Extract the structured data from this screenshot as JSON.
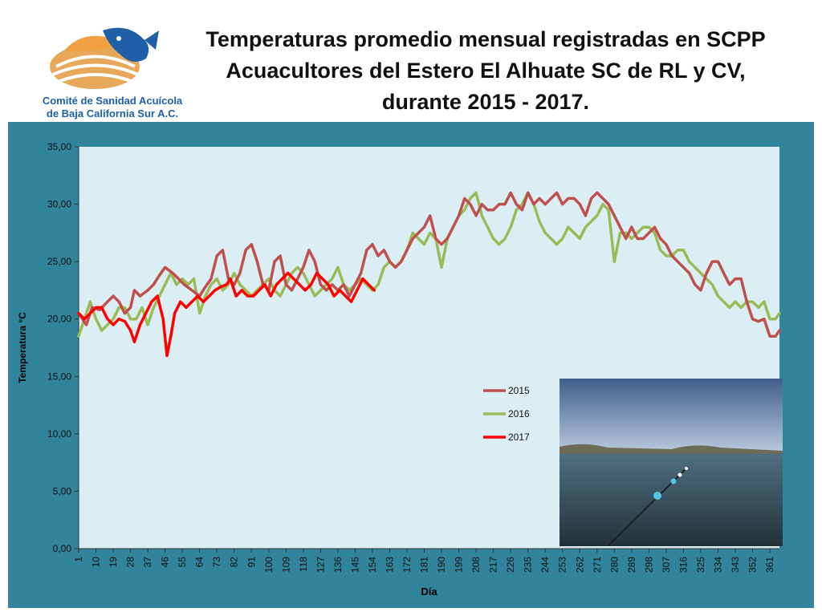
{
  "header": {
    "title_lines": [
      "Temperaturas promedio mensual registradas en SCPP",
      "Acuacultores del Estero El Alhuate SC de RL y CV,",
      "durante 2015 - 2017."
    ],
    "logo_text_lines": [
      "Comité de Sanidad Acuícola",
      "de Baja California Sur A.C."
    ]
  },
  "colors": {
    "frame": "#31849b",
    "plot_bg": "#dbeef3",
    "series_2015": "#c0504d",
    "series_2016": "#9bbb59",
    "series_2017": "#ff0000"
  },
  "chart_data": {
    "type": "line",
    "xlabel": "Día",
    "ylabel": "Temperatura °C",
    "ylim": [
      0,
      35
    ],
    "yticks": [
      "0,00",
      "5,00",
      "10,00",
      "15,00",
      "20,00",
      "25,00",
      "30,00",
      "35,00"
    ],
    "xticks": [
      1,
      10,
      19,
      28,
      37,
      46,
      55,
      64,
      73,
      82,
      91,
      100,
      109,
      118,
      127,
      136,
      145,
      154,
      163,
      172,
      181,
      190,
      199,
      208,
      217,
      226,
      235,
      244,
      253,
      262,
      271,
      280,
      289,
      298,
      307,
      316,
      325,
      334,
      343,
      352,
      361
    ],
    "xlim": [
      1,
      366
    ],
    "legend_position": "lower-middle",
    "grid": false,
    "series": [
      {
        "name": "2015",
        "points": [
          [
            1,
            20.5
          ],
          [
            5,
            19.5
          ],
          [
            8,
            21
          ],
          [
            12,
            20.8
          ],
          [
            16,
            21.5
          ],
          [
            19,
            22
          ],
          [
            22,
            21.5
          ],
          [
            25,
            20.5
          ],
          [
            28,
            21
          ],
          [
            30,
            22.5
          ],
          [
            33,
            22
          ],
          [
            37,
            22.5
          ],
          [
            40,
            23
          ],
          [
            43,
            23.8
          ],
          [
            46,
            24.5
          ],
          [
            50,
            24
          ],
          [
            53,
            23.5
          ],
          [
            56,
            23
          ],
          [
            60,
            22.5
          ],
          [
            64,
            22
          ],
          [
            67,
            22.8
          ],
          [
            70,
            23.5
          ],
          [
            73,
            25.5
          ],
          [
            76,
            26
          ],
          [
            79,
            23.5
          ],
          [
            82,
            23
          ],
          [
            85,
            24
          ],
          [
            88,
            26
          ],
          [
            91,
            26.5
          ],
          [
            94,
            25
          ],
          [
            97,
            23
          ],
          [
            100,
            22.5
          ],
          [
            103,
            25
          ],
          [
            106,
            25.5
          ],
          [
            109,
            23
          ],
          [
            112,
            22.5
          ],
          [
            115,
            23.5
          ],
          [
            118,
            24.5
          ],
          [
            121,
            26
          ],
          [
            124,
            25
          ],
          [
            127,
            23
          ],
          [
            130,
            22.5
          ],
          [
            133,
            23
          ],
          [
            136,
            22.5
          ],
          [
            139,
            23
          ],
          [
            142,
            22
          ],
          [
            145,
            23
          ],
          [
            148,
            24
          ],
          [
            151,
            26
          ],
          [
            154,
            26.5
          ],
          [
            157,
            25.5
          ],
          [
            160,
            26
          ],
          [
            163,
            25
          ],
          [
            166,
            24.5
          ],
          [
            169,
            25
          ],
          [
            172,
            26
          ],
          [
            175,
            27
          ],
          [
            178,
            27.5
          ],
          [
            181,
            28
          ],
          [
            184,
            29
          ],
          [
            187,
            27
          ],
          [
            190,
            26.5
          ],
          [
            193,
            27
          ],
          [
            196,
            28
          ],
          [
            199,
            29
          ],
          [
            202,
            30.5
          ],
          [
            205,
            30
          ],
          [
            208,
            29
          ],
          [
            211,
            30
          ],
          [
            214,
            29.5
          ],
          [
            217,
            29.5
          ],
          [
            220,
            30
          ],
          [
            223,
            30
          ],
          [
            226,
            31
          ],
          [
            229,
            30
          ],
          [
            232,
            29.5
          ],
          [
            235,
            31
          ],
          [
            238,
            30
          ],
          [
            241,
            30.5
          ],
          [
            244,
            30
          ],
          [
            247,
            30.5
          ],
          [
            250,
            31
          ],
          [
            253,
            30
          ],
          [
            256,
            30.5
          ],
          [
            259,
            30.5
          ],
          [
            262,
            30
          ],
          [
            265,
            29
          ],
          [
            268,
            30.5
          ],
          [
            271,
            31
          ],
          [
            274,
            30.5
          ],
          [
            277,
            30
          ],
          [
            280,
            29
          ],
          [
            283,
            28
          ],
          [
            286,
            27
          ],
          [
            289,
            28
          ],
          [
            292,
            27
          ],
          [
            295,
            27
          ],
          [
            298,
            27.5
          ],
          [
            301,
            28
          ],
          [
            304,
            27
          ],
          [
            307,
            26.5
          ],
          [
            310,
            25.5
          ],
          [
            313,
            25
          ],
          [
            316,
            24.5
          ],
          [
            319,
            24
          ],
          [
            322,
            23
          ],
          [
            325,
            22.5
          ],
          [
            328,
            24
          ],
          [
            331,
            25
          ],
          [
            334,
            25
          ],
          [
            337,
            24
          ],
          [
            340,
            23
          ],
          [
            343,
            23.5
          ],
          [
            346,
            23.5
          ],
          [
            349,
            21.5
          ],
          [
            352,
            20
          ],
          [
            355,
            19.8
          ],
          [
            358,
            20
          ],
          [
            361,
            18.5
          ],
          [
            364,
            18.5
          ],
          [
            366,
            19
          ]
        ]
      },
      {
        "name": "2016",
        "points": [
          [
            1,
            18.5
          ],
          [
            4,
            20
          ],
          [
            7,
            21.5
          ],
          [
            10,
            20
          ],
          [
            13,
            19
          ],
          [
            16,
            19.5
          ],
          [
            19,
            20
          ],
          [
            22,
            21
          ],
          [
            25,
            21
          ],
          [
            28,
            20
          ],
          [
            31,
            20
          ],
          [
            34,
            21
          ],
          [
            37,
            19.5
          ],
          [
            40,
            21
          ],
          [
            43,
            22
          ],
          [
            46,
            23
          ],
          [
            49,
            24
          ],
          [
            52,
            23
          ],
          [
            55,
            23.5
          ],
          [
            58,
            23
          ],
          [
            61,
            23.5
          ],
          [
            64,
            20.5
          ],
          [
            67,
            22
          ],
          [
            70,
            23
          ],
          [
            73,
            23.5
          ],
          [
            76,
            22.5
          ],
          [
            79,
            23
          ],
          [
            82,
            24
          ],
          [
            85,
            23
          ],
          [
            88,
            22.5
          ],
          [
            91,
            22
          ],
          [
            94,
            22.5
          ],
          [
            97,
            23
          ],
          [
            100,
            23.5
          ],
          [
            103,
            22.5
          ],
          [
            106,
            22
          ],
          [
            109,
            23
          ],
          [
            112,
            24
          ],
          [
            115,
            24.5
          ],
          [
            118,
            24
          ],
          [
            121,
            23
          ],
          [
            124,
            22
          ],
          [
            127,
            22.5
          ],
          [
            130,
            23
          ],
          [
            133,
            23.5
          ],
          [
            136,
            24.5
          ],
          [
            139,
            23
          ],
          [
            142,
            22.5
          ],
          [
            145,
            23
          ],
          [
            148,
            23.5
          ],
          [
            151,
            23
          ],
          [
            154,
            22.5
          ],
          [
            157,
            23
          ],
          [
            160,
            24.5
          ],
          [
            163,
            25
          ],
          [
            166,
            24.5
          ],
          [
            169,
            25
          ],
          [
            172,
            26
          ],
          [
            175,
            27.5
          ],
          [
            178,
            27
          ],
          [
            181,
            26.5
          ],
          [
            184,
            27.5
          ],
          [
            187,
            27
          ],
          [
            190,
            24.5
          ],
          [
            193,
            27
          ],
          [
            196,
            28
          ],
          [
            199,
            29
          ],
          [
            202,
            29.5
          ],
          [
            205,
            30.5
          ],
          [
            208,
            31
          ],
          [
            211,
            29
          ],
          [
            214,
            28
          ],
          [
            217,
            27
          ],
          [
            220,
            26.5
          ],
          [
            223,
            27
          ],
          [
            226,
            28
          ],
          [
            229,
            29.5
          ],
          [
            232,
            30
          ],
          [
            235,
            31
          ],
          [
            238,
            30
          ],
          [
            241,
            28.5
          ],
          [
            244,
            27.5
          ],
          [
            247,
            27
          ],
          [
            250,
            26.5
          ],
          [
            253,
            27
          ],
          [
            256,
            28
          ],
          [
            259,
            27.5
          ],
          [
            262,
            27
          ],
          [
            265,
            28
          ],
          [
            268,
            28.5
          ],
          [
            271,
            29
          ],
          [
            274,
            30
          ],
          [
            277,
            29.5
          ],
          [
            280,
            25
          ],
          [
            283,
            27.5
          ],
          [
            286,
            27.5
          ],
          [
            289,
            27
          ],
          [
            292,
            27.5
          ],
          [
            295,
            28
          ],
          [
            298,
            28
          ],
          [
            301,
            27.5
          ],
          [
            304,
            26
          ],
          [
            307,
            25.5
          ],
          [
            310,
            25.5
          ],
          [
            313,
            26
          ],
          [
            316,
            26
          ],
          [
            319,
            25
          ],
          [
            322,
            24.5
          ],
          [
            325,
            24
          ],
          [
            328,
            23.5
          ],
          [
            331,
            23
          ],
          [
            334,
            22
          ],
          [
            337,
            21.5
          ],
          [
            340,
            21
          ],
          [
            343,
            21.5
          ],
          [
            346,
            21
          ],
          [
            349,
            21.5
          ],
          [
            352,
            21.5
          ],
          [
            355,
            21
          ],
          [
            358,
            21.5
          ],
          [
            361,
            20
          ],
          [
            364,
            20
          ],
          [
            366,
            20.5
          ]
        ]
      },
      {
        "name": "2017",
        "points": [
          [
            1,
            20.5
          ],
          [
            4,
            20
          ],
          [
            7,
            20.5
          ],
          [
            10,
            21
          ],
          [
            13,
            21
          ],
          [
            16,
            20
          ],
          [
            19,
            19.5
          ],
          [
            22,
            20
          ],
          [
            25,
            19.8
          ],
          [
            28,
            19
          ],
          [
            30,
            18
          ],
          [
            33,
            19.5
          ],
          [
            36,
            20.5
          ],
          [
            39,
            21.5
          ],
          [
            42,
            22
          ],
          [
            45,
            20
          ],
          [
            47,
            16.8
          ],
          [
            49,
            18.5
          ],
          [
            51,
            20.5
          ],
          [
            54,
            21.5
          ],
          [
            57,
            21
          ],
          [
            60,
            21.5
          ],
          [
            63,
            22
          ],
          [
            66,
            21.5
          ],
          [
            69,
            22
          ],
          [
            72,
            22.5
          ],
          [
            75,
            22.8
          ],
          [
            78,
            23
          ],
          [
            80,
            23.5
          ],
          [
            83,
            22
          ],
          [
            86,
            22.5
          ],
          [
            89,
            22
          ],
          [
            92,
            22
          ],
          [
            95,
            22.5
          ],
          [
            98,
            23
          ],
          [
            101,
            22
          ],
          [
            104,
            23
          ],
          [
            107,
            23.5
          ],
          [
            110,
            24
          ],
          [
            113,
            23.5
          ],
          [
            116,
            23
          ],
          [
            119,
            22.5
          ],
          [
            122,
            23
          ],
          [
            125,
            24
          ],
          [
            128,
            23.5
          ],
          [
            131,
            23
          ],
          [
            134,
            22
          ],
          [
            137,
            22.5
          ],
          [
            140,
            22
          ],
          [
            143,
            21.5
          ],
          [
            146,
            22.5
          ],
          [
            149,
            23.5
          ],
          [
            152,
            23
          ],
          [
            155,
            22.5
          ]
        ]
      }
    ]
  }
}
